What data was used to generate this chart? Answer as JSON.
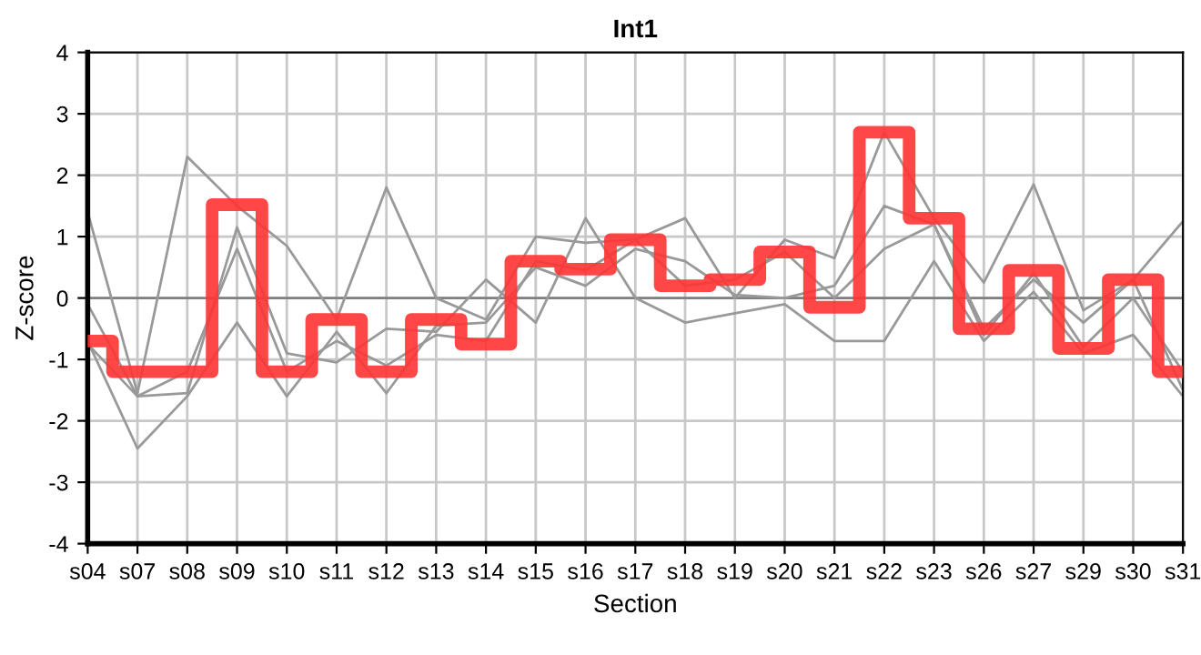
{
  "chart_data": {
    "type": "line",
    "title": "Int1",
    "xlabel": "Section",
    "ylabel": "Z-score",
    "categories": [
      "s04",
      "s07",
      "s08",
      "s09",
      "s10",
      "s11",
      "s12",
      "s13",
      "s14",
      "s15",
      "s16",
      "s17",
      "s18",
      "s19",
      "s20",
      "s21",
      "s22",
      "s23",
      "s26",
      "s27",
      "s29",
      "s30",
      "s31"
    ],
    "series": [
      {
        "color": "#999999",
        "values": [
          1.4,
          -1.55,
          2.3,
          1.5,
          0.85,
          -0.35,
          1.8,
          0.0,
          -0.35,
          1.0,
          0.9,
          0.95,
          1.3,
          0.0,
          0.95,
          0.65,
          2.7,
          1.3,
          0.25,
          1.85,
          -0.2,
          0.3,
          1.25
        ]
      },
      {
        "color": "#999999",
        "values": [
          -0.1,
          -1.6,
          -1.55,
          1.15,
          -0.9,
          -1.05,
          -0.5,
          -0.55,
          0.3,
          -0.4,
          1.3,
          0.0,
          -0.4,
          -0.25,
          -0.1,
          -0.7,
          -0.7,
          0.6,
          -0.7,
          0.1,
          -0.9,
          -0.6,
          -1.6
        ]
      },
      {
        "color": "#999999",
        "values": [
          -0.7,
          -2.45,
          -1.6,
          -0.4,
          -1.6,
          -0.55,
          -1.55,
          -0.45,
          -0.4,
          0.5,
          0.2,
          0.8,
          0.6,
          0.05,
          0.0,
          0.2,
          1.5,
          1.2,
          -0.6,
          0.4,
          -0.8,
          0.0,
          -1.2
        ]
      },
      {
        "color": "#999999",
        "values": [
          -0.75,
          -1.6,
          -1.2,
          0.8,
          -1.2,
          -0.7,
          -1.1,
          -0.6,
          -0.7,
          0.6,
          0.45,
          0.95,
          0.2,
          0.3,
          0.75,
          0.0,
          0.8,
          1.2,
          -0.5,
          0.3,
          -0.4,
          0.3,
          -1.5
        ]
      },
      {
        "type": "step",
        "color": "#ff3333",
        "values": [
          -0.7,
          -1.2,
          -1.2,
          1.52,
          -1.2,
          -0.35,
          -1.2,
          -0.35,
          -0.75,
          0.6,
          0.47,
          0.95,
          0.2,
          0.3,
          0.75,
          -0.15,
          2.7,
          1.3,
          -0.5,
          0.45,
          -0.82,
          0.3,
          -1.2
        ]
      }
    ],
    "ylim": [
      -4,
      4
    ],
    "yticks": [
      -4,
      -3,
      -2,
      -1,
      0,
      1,
      2,
      3,
      4
    ],
    "grid": true,
    "ref_lines": [
      {
        "axis": "y",
        "value": 0,
        "color": "#808080"
      }
    ]
  }
}
